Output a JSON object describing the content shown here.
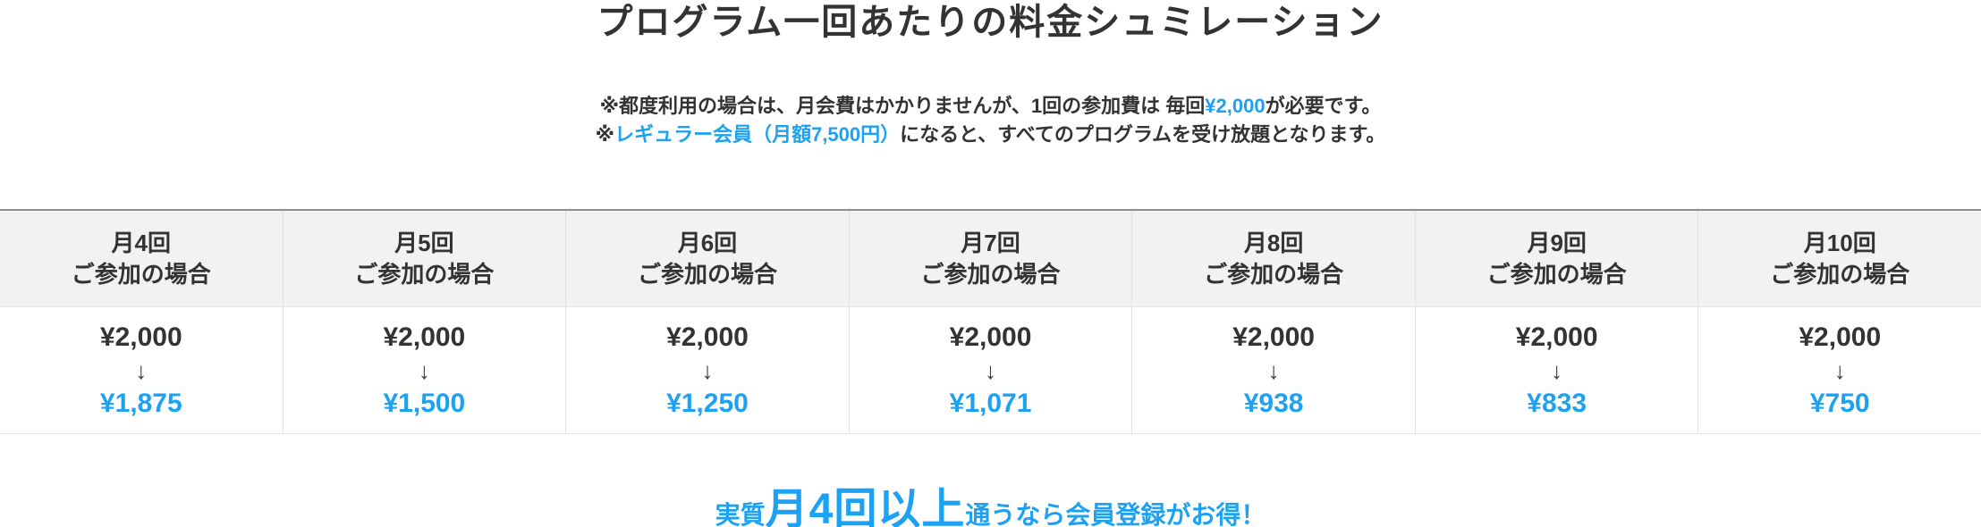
{
  "title": "プログラム一回あたりの料金シュミレーション",
  "notes": [
    {
      "prefix": "※都度利用の場合は、月会費はかかりませんが、1回の参加費は 毎回",
      "highlight": "¥2,000",
      "suffix": "が必要です。"
    },
    {
      "prefix": "※",
      "highlight": "レギュラー会員（月額7,500円）",
      "suffix": "になると、すべてのプログラムを受け放題となります。"
    }
  ],
  "table": {
    "arrow_glyph": "↓",
    "columns": [
      {
        "header_line1": "月4回",
        "header_line2": "ご参加の場合",
        "base_price": "¥2,000",
        "discount_price": "¥1,875"
      },
      {
        "header_line1": "月5回",
        "header_line2": "ご参加の場合",
        "base_price": "¥2,000",
        "discount_price": "¥1,500"
      },
      {
        "header_line1": "月6回",
        "header_line2": "ご参加の場合",
        "base_price": "¥2,000",
        "discount_price": "¥1,250"
      },
      {
        "header_line1": "月7回",
        "header_line2": "ご参加の場合",
        "base_price": "¥2,000",
        "discount_price": "¥1,071"
      },
      {
        "header_line1": "月8回",
        "header_line2": "ご参加の場合",
        "base_price": "¥2,000",
        "discount_price": "¥938"
      },
      {
        "header_line1": "月9回",
        "header_line2": "ご参加の場合",
        "base_price": "¥2,000",
        "discount_price": "¥833"
      },
      {
        "header_line1": "月10回",
        "header_line2": "ご参加の場合",
        "base_price": "¥2,000",
        "discount_price": "¥750"
      }
    ]
  },
  "footer": {
    "lead": "実質",
    "emphasis": "月4回以上",
    "rest": "通うなら会員登録がお得！"
  },
  "colors": {
    "accent_blue": "#1da1f2",
    "text_dark": "#333333",
    "header_bg": "#f2f2f2",
    "table_top_border": "#8c8c8c",
    "table_light_border": "#e2e2e2"
  }
}
